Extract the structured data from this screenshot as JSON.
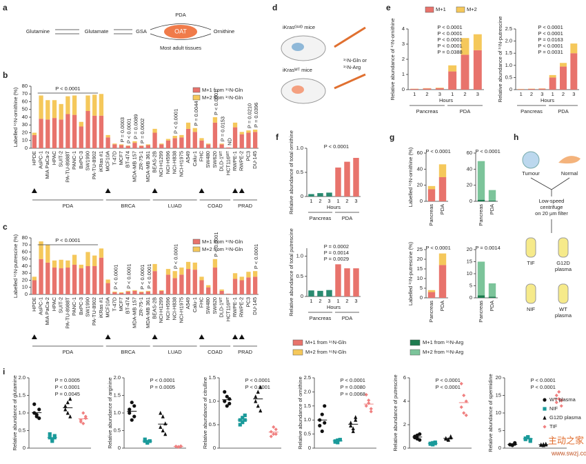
{
  "panel_labels": [
    "a",
    "b",
    "c",
    "d",
    "e",
    "f",
    "g",
    "h",
    "i"
  ],
  "diagram_a": {
    "nodes": [
      "Glutamine",
      "Glutamate",
      "GSA",
      "OAT",
      "Ornithine"
    ],
    "top_label": "PDA",
    "bottom_label": "Most adult tissues"
  },
  "diagram_d": {
    "labels": [
      "iKrasᴳ¹²ᴰ mice",
      "iKrasᵂᵀ mice",
      "¹⁵N-Gln or",
      "¹⁵N-Arg"
    ]
  },
  "diagram_h": {
    "labels": [
      "Tumour",
      "Normal",
      "Low-speed",
      "centrifuge",
      "on 20 µm filter",
      "TIF",
      "G12D",
      "plasma",
      "NIF",
      "WT",
      "plasma"
    ]
  },
  "shared_legend": [
    {
      "name": "M+1 from ¹⁵N-Gln",
      "color": "#e8736c"
    },
    {
      "name": "M+2 from ¹⁵N-Gln",
      "color": "#f5c85b"
    },
    {
      "name": "M+1 from ¹⁵N-Arg",
      "color": "#1e7b4f"
    },
    {
      "name": "M+2 from ¹⁵N-Arg",
      "color": "#7cc49a"
    }
  ],
  "legend_i": [
    {
      "name": "WT plasma",
      "color": "#111111",
      "marker": "circle"
    },
    {
      "name": "NIF",
      "color": "#1a9a9a",
      "marker": "square"
    },
    {
      "name": "G12D plasma",
      "color": "#111111",
      "marker": "triangle"
    },
    {
      "name": "TIF",
      "color": "#f08080",
      "marker": "diamond"
    }
  ],
  "watermark": [
    "主动之家",
    "www.swzj.com"
  ],
  "chart_data": [
    {
      "type": "bar",
      "ylabel": "Labelled ¹⁵N-ornithine (%)",
      "legend": "top-right",
      "categories": [
        "HPDE",
        "AsPC-1",
        "MIA PaCa-2",
        "HPAC",
        "SUIT-2",
        "PA-TU-8988T",
        "PANC-1",
        "BxPC-3",
        "SW1990",
        "PA-TU-8902",
        "iKRas #1",
        "MCF10A",
        "T-47D",
        "MCF7",
        "BT-474",
        "MDA-MB 157",
        "ZR-75-1",
        "MDA-MB 361",
        "BEAS-2B",
        "NCI-H1299",
        "NCI-H596",
        "NCI-H838",
        "NCI-H1975",
        "A549",
        "Calu-1",
        "FHC",
        "SW480",
        "SW620",
        "DLD-1ᵂᵀ",
        "HCT116ᵂᵀ",
        "RWPE-1",
        "RWPE-2",
        "PC3",
        "DU-145"
      ],
      "groups": [
        "PDA",
        "BRCA",
        "LUAD",
        "COAD",
        "PRAD"
      ],
      "series": [
        {
          "name": "M+1 from ¹⁵N-Gln",
          "color": "#e8736c",
          "values": [
            17,
            38,
            37,
            39,
            37,
            44,
            43,
            28,
            48,
            42,
            42,
            14,
            5,
            4,
            3,
            7,
            3,
            4,
            20,
            5,
            10,
            13,
            14,
            25,
            21,
            10,
            5,
            33,
            5,
            1,
            27,
            18,
            20,
            21
          ]
        },
        {
          "name": "M+2 from ¹⁵N-Gln",
          "color": "#f5c85b",
          "values": [
            3,
            30,
            25,
            23,
            20,
            23,
            25,
            6,
            20,
            27,
            28,
            3,
            1,
            1,
            0.5,
            2,
            0.5,
            1,
            5,
            1,
            2,
            3,
            3,
            8,
            5,
            3,
            1,
            7,
            1,
            0,
            6,
            3,
            3,
            3
          ]
        }
      ],
      "ylim": [
        0,
        80
      ],
      "yticks": [
        0,
        10,
        20,
        30,
        40,
        50,
        60,
        70,
        80
      ],
      "annotations": [
        "P < 0.0001",
        "P = 0.0003",
        "P < 0.0001",
        "P = 0.0089",
        "P = 0.0002",
        "P < 0.0001",
        "P = 0.0044",
        "P < 0.0001",
        "P = 0.0153",
        "ND",
        "P = 0.0210",
        "P = 0.0396"
      ]
    },
    {
      "type": "bar",
      "ylabel": "Labelled ¹⁵N-putrescine (%)",
      "legend": "top-right",
      "categories": [
        "HPDE",
        "AsPC-1",
        "MIA PaCa-2",
        "HPAC",
        "SUIT-2",
        "PA-TU-8988T",
        "PANC-1",
        "BxPC-3",
        "SW1990",
        "PA-TU-8902",
        "iKRas #1",
        "MCF10A",
        "T-47D",
        "MCF7",
        "BT-474",
        "MDA-MB 157",
        "ZR-75-1",
        "MDA-MB 361",
        "BEAS-2B",
        "NCI-H1299",
        "NCI-H596",
        "NCI-H838",
        "NCI-H1975",
        "A549",
        "Calu-1",
        "FHC",
        "SW480",
        "SW620",
        "DLD-1ᵂᵀ",
        "HCT116ᵂᵀ",
        "RWPE-1",
        "RWPE-2",
        "PC3",
        "DU-145"
      ],
      "groups": [
        "PDA",
        "BRCA",
        "LUAD",
        "COAD",
        "PRAD"
      ],
      "series": [
        {
          "name": "M+1 from ¹⁵N-Gln",
          "color": "#e8736c",
          "values": [
            20,
            50,
            45,
            38,
            37,
            38,
            42,
            37,
            40,
            40,
            52,
            16,
            3,
            2,
            4,
            5,
            3,
            4,
            33,
            5,
            28,
            23,
            28,
            36,
            35,
            20,
            10,
            38,
            5,
            1,
            22,
            20,
            24,
            25
          ]
        },
        {
          "name": "M+2 from ¹⁵N-Gln",
          "color": "#f5c85b",
          "values": [
            5,
            25,
            25,
            10,
            12,
            10,
            14,
            5,
            20,
            15,
            13,
            5,
            1,
            1,
            1,
            1,
            1,
            1,
            10,
            1,
            8,
            10,
            10,
            10,
            10,
            5,
            3,
            12,
            2,
            0,
            8,
            5,
            8,
            8
          ]
        }
      ],
      "ylim": [
        0,
        80
      ],
      "yticks": [
        0,
        10,
        20,
        30,
        40,
        50,
        60,
        70,
        80
      ],
      "annotations": [
        "P < 0.0001",
        "P < 0.0001",
        "P < 0.0001",
        "P < 0.0001",
        "P < 0.0001",
        "P < 0.0001",
        "P < 0.0001",
        "P < 0.0001"
      ]
    },
    {
      "type": "bar",
      "ylabel": "Relative abundance of ¹⁵N-ornithine",
      "xlabel": "Hours",
      "legend": "top",
      "categories": [
        "1",
        "2",
        "3",
        "1",
        "2",
        "3"
      ],
      "groups": [
        "Pancreas",
        "PDA"
      ],
      "series": [
        {
          "name": "M+1",
          "color": "#e8736c",
          "values": [
            0.05,
            0.08,
            0.1,
            1.2,
            2.3,
            2.6
          ]
        },
        {
          "name": "M+2",
          "color": "#f5c85b",
          "values": [
            0.01,
            0.02,
            0.03,
            0.4,
            1.1,
            1.05
          ]
        }
      ],
      "ylim": [
        0,
        4
      ],
      "yticks": [
        0,
        1,
        2,
        3,
        4
      ],
      "annotations": [
        "P < 0.0001",
        "P < 0.0001",
        "P < 0.0001",
        "P < 0.0001",
        "P = 0.0388"
      ]
    },
    {
      "type": "bar",
      "ylabel": "Relative abundance of ¹⁵N-putrescine",
      "xlabel": "Hours",
      "categories": [
        "1",
        "2",
        "3",
        "1",
        "2",
        "3"
      ],
      "groups": [
        "Pancreas",
        "PDA"
      ],
      "series": [
        {
          "color": "#e8736c",
          "values": [
            0.02,
            0.03,
            0.04,
            0.5,
            0.95,
            1.5
          ]
        },
        {
          "color": "#f5c85b",
          "values": [
            0.01,
            0.01,
            0.01,
            0.1,
            0.15,
            0.4
          ]
        }
      ],
      "ylim": [
        0,
        2.5
      ],
      "yticks": [
        0,
        0.5,
        {
          "value": 1,
          "label": "1.0"
        },
        1.5,
        {
          "value": 2,
          "label": "2.0"
        },
        2.5
      ],
      "annotations": [
        "P < 0.0001",
        "P < 0.0001",
        "P = 0.0163",
        "P < 0.0001",
        "P = 0.0031"
      ]
    },
    {
      "type": "bar",
      "ylabel": "Relative abundance of total ornithine",
      "xlabel": "Hours",
      "categories": [
        "1",
        "2",
        "3",
        "1",
        "2",
        "3"
      ],
      "groups": [
        "Pancreas",
        "PDA"
      ],
      "series": [
        {
          "color": "#2a8a70",
          "values": [
            0.05,
            0.07,
            0.08,
            null,
            null,
            null
          ]
        },
        {
          "color": "#e8736c",
          "values": [
            null,
            null,
            null,
            0.6,
            0.72,
            0.8
          ]
        }
      ],
      "ylim": [
        0,
        1
      ],
      "yticks": [
        0,
        0.5,
        {
          "value": 1,
          "label": "1.0"
        }
      ],
      "annotations": [
        "P < 0.0001"
      ]
    },
    {
      "type": "bar",
      "ylabel": "Relative abundance of total putrescine",
      "xlabel": "Hours",
      "categories": [
        "1",
        "2",
        "3",
        "1",
        "2",
        "3"
      ],
      "groups": [
        "Pancreas",
        "PDA"
      ],
      "series": [
        {
          "color": "#2a8a70",
          "values": [
            0.15,
            0.14,
            0.16,
            null,
            null,
            null
          ]
        },
        {
          "color": "#e8736c",
          "values": [
            null,
            null,
            null,
            0.8,
            0.7,
            0.7
          ]
        }
      ],
      "ylim": [
        0,
        1.2
      ],
      "yticks": [
        0,
        0.5,
        {
          "value": 1,
          "label": "1.0"
        }
      ],
      "annotations": [
        "P = 0.0002",
        "P = 0.0014",
        "P = 0.0029"
      ]
    },
    {
      "type": "bar",
      "ylabel": "Labelled ¹⁵N-ornithine (%)",
      "categories": [
        "Pancreas",
        "PDA"
      ],
      "series": [
        {
          "color": "#e8736c",
          "values": [
            15,
            30
          ]
        },
        {
          "color": "#f5c85b",
          "values": [
            4,
            16
          ]
        }
      ],
      "ylim": [
        0,
        60
      ],
      "yticks": [
        0,
        20,
        40,
        60
      ],
      "annotations": [
        "P < 0.0001"
      ]
    },
    {
      "type": "bar",
      "categories": [
        "Pancreas",
        "PDA"
      ],
      "series": [
        {
          "color": "#1e7b4f",
          "values": [
            2,
            1
          ]
        },
        {
          "color": "#7cc49a",
          "values": [
            48,
            13
          ]
        }
      ],
      "ylim": [
        0,
        60
      ],
      "yticks": [
        0,
        20,
        40,
        60
      ],
      "annotations": [
        "P < 0.0001"
      ]
    },
    {
      "type": "bar",
      "ylabel": "Labelled ¹⁵N-putrescine (%)",
      "categories": [
        "Pancreas",
        "PDA"
      ],
      "series": [
        {
          "color": "#e8736c",
          "values": [
            3,
            17
          ]
        },
        {
          "color": "#f5c85b",
          "values": [
            1,
            6
          ]
        }
      ],
      "ylim": [
        0,
        25
      ],
      "yticks": [
        0,
        5,
        10,
        15,
        20,
        25
      ],
      "annotations": [
        "P < 0.0001"
      ]
    },
    {
      "type": "bar",
      "categories": [
        "Pancreas",
        "PDA"
      ],
      "series": [
        {
          "color": "#1e7b4f",
          "values": [
            1,
            0.5
          ]
        },
        {
          "color": "#7cc49a",
          "values": [
            14,
            5.5
          ]
        }
      ],
      "ylim": [
        0,
        20
      ],
      "yticks": [
        0,
        5,
        10,
        15,
        20
      ],
      "annotations": [
        "P = 0.0014"
      ]
    },
    {
      "type": "dot",
      "ylabel": "Relative abundance of glutamine",
      "series": [
        {
          "values": [
            1.0,
            0.9,
            1.1,
            1.25,
            0.95,
            0.85
          ]
        },
        {
          "values": [
            0.3,
            0.25,
            0.35,
            0.4,
            0.2,
            0.3
          ]
        },
        {
          "values": [
            1.2,
            1.0,
            1.4,
            1.1,
            1.3,
            0.9
          ]
        },
        {
          "values": [
            0.8,
            0.7,
            0.9,
            0.75,
            1.0,
            0.85
          ]
        }
      ],
      "ylim": [
        0,
        2
      ],
      "yticks": [
        0,
        0.5,
        {
          "value": 1,
          "label": "1.0"
        },
        1.5,
        {
          "value": 2,
          "label": "2.0"
        }
      ],
      "annotations": [
        "P = 0.0005",
        "P < 0.0001",
        "P = 0.0045"
      ]
    },
    {
      "type": "dot",
      "ylabel": "Relative abundance of arginine",
      "series": [
        {
          "values": [
            1.0,
            1.3,
            0.9,
            1.1,
            0.8,
            1.2
          ]
        },
        {
          "values": [
            0.2,
            0.15,
            0.2,
            0.25,
            0.18,
            0.2
          ]
        },
        {
          "values": [
            0.6,
            0.9,
            0.4,
            1.0,
            0.5,
            0.7
          ]
        },
        {
          "values": [
            0.05,
            0.04,
            0.06,
            0.05,
            0.03,
            0.05
          ]
        }
      ],
      "ylim": [
        0,
        2
      ],
      "yticks": [
        0,
        0.5,
        {
          "value": 1,
          "label": "1.0"
        },
        1.5,
        {
          "value": 2,
          "label": "2.0"
        }
      ],
      "annotations": [
        "P < 0.0001",
        "P = 0.0005"
      ]
    },
    {
      "type": "dot",
      "ylabel": "Relative abundance of citrulline",
      "series": [
        {
          "values": [
            1.0,
            1.1,
            0.95,
            1.2,
            0.9,
            1.05
          ]
        },
        {
          "values": [
            0.6,
            0.55,
            0.7,
            0.5,
            0.65,
            0.6
          ]
        },
        {
          "values": [
            1.0,
            1.2,
            0.8,
            1.1,
            0.9,
            1.3
          ]
        },
        {
          "values": [
            0.35,
            0.3,
            0.4,
            0.25,
            0.45,
            0.3
          ]
        }
      ],
      "ylim": [
        0,
        1.5
      ],
      "yticks": [
        0,
        0.5,
        {
          "value": 1,
          "label": "1.0"
        },
        1.5
      ],
      "annotations": [
        "P < 0.0001",
        "P < 0.0001"
      ]
    },
    {
      "type": "dot",
      "ylabel": "Relative abundance of ornithine",
      "series": [
        {
          "values": [
            1.0,
            0.6,
            1.5,
            0.8,
            1.2,
            0.9
          ]
        },
        {
          "values": [
            0.25,
            0.2,
            0.3,
            0.22,
            0.28,
            0.3
          ]
        },
        {
          "values": [
            0.8,
            0.6,
            1.0,
            0.9,
            0.7,
            1.1
          ]
        },
        {
          "values": [
            1.5,
            1.7,
            1.3,
            1.9,
            1.6,
            1.4
          ]
        }
      ],
      "ylim": [
        0,
        2.5
      ],
      "yticks": [
        0,
        0.5,
        {
          "value": 1,
          "label": "1.0"
        },
        1.5,
        {
          "value": 2,
          "label": "2.0"
        },
        2.5
      ],
      "annotations": [
        "P < 0.0001",
        "P = 0.0080",
        "P = 0.0068"
      ]
    },
    {
      "type": "dot",
      "ylabel": "Relative abundance of putrescine",
      "series": [
        {
          "values": [
            1.0,
            0.8,
            1.2,
            0.9,
            1.1,
            0.7
          ]
        },
        {
          "values": [
            0.4,
            0.3,
            0.5,
            0.35,
            0.45,
            0.4
          ]
        },
        {
          "values": [
            0.8,
            0.7,
            0.9,
            0.85,
            0.75,
            1.0
          ]
        },
        {
          "values": [
            3.5,
            4.5,
            2.8,
            5.5,
            3.0,
            4.0
          ]
        }
      ],
      "ylim": [
        0,
        6
      ],
      "yticks": [
        0,
        2,
        4,
        6
      ],
      "annotations": [
        "P < 0.0001",
        "P < 0.0001"
      ]
    },
    {
      "type": "dot",
      "ylabel": "Relative abundance of spermidine",
      "series": [
        {
          "values": [
            1,
            0.8,
            1.2,
            1.0,
            0.9,
            1.5
          ]
        },
        {
          "values": [
            2.5,
            3,
            2,
            2.8,
            3.2,
            2.4
          ]
        },
        {
          "values": [
            1,
            0.8,
            1.2,
            0.9,
            1.1,
            1.0
          ]
        },
        {
          "values": [
            13,
            14,
            12,
            15,
            16,
            13.5
          ]
        }
      ],
      "ylim": [
        0,
        20
      ],
      "yticks": [
        0,
        5,
        10,
        15,
        20
      ],
      "annotations": [
        "P < 0.0001",
        "P < 0.0001"
      ]
    }
  ]
}
